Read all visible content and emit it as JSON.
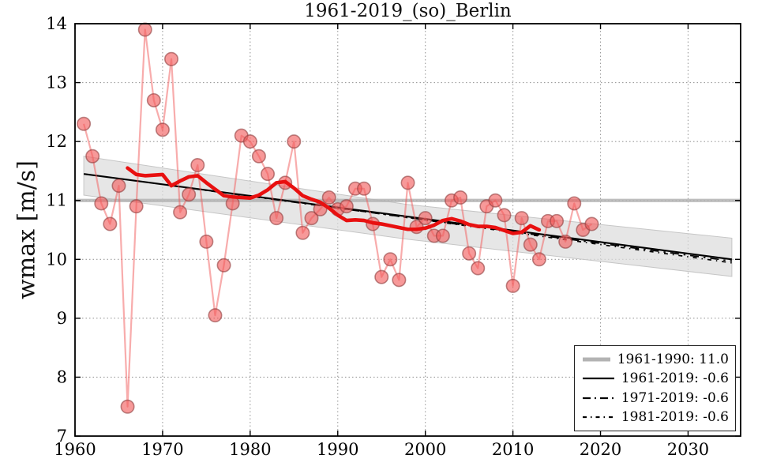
{
  "chart_data": {
    "type": "line",
    "title": "1961-2019_(so)_Berlin",
    "ylabel": "wmax [m/s]",
    "xlim": [
      1960,
      2036
    ],
    "ylim": [
      7,
      14
    ],
    "xticks": [
      1960,
      1970,
      1980,
      1990,
      2000,
      2010,
      2020,
      2030
    ],
    "yticks": [
      7,
      8,
      9,
      10,
      11,
      12,
      13,
      14
    ],
    "grid": true,
    "series": [
      {
        "name": "annual_wmax",
        "type": "scatter_line",
        "color": "#f25a5a",
        "x_start": 1961,
        "y": [
          12.3,
          11.75,
          10.95,
          10.6,
          11.25,
          7.5,
          10.9,
          13.9,
          12.7,
          12.2,
          13.4,
          10.8,
          11.1,
          11.6,
          10.3,
          9.05,
          9.9,
          10.95,
          12.1,
          12.0,
          11.75,
          11.45,
          10.7,
          11.3,
          12.0,
          10.45,
          10.7,
          10.85,
          11.05,
          10.85,
          10.9,
          11.2,
          11.2,
          10.6,
          9.7,
          10.0,
          9.65,
          11.3,
          10.55,
          10.7,
          10.4,
          10.4,
          11.0,
          11.05,
          10.1,
          9.85,
          10.9,
          11.0,
          10.75,
          9.55,
          10.7,
          10.25,
          10.0,
          10.65,
          10.65,
          10.3,
          10.95,
          10.5,
          10.6
        ]
      },
      {
        "name": "smoothed_wmax",
        "type": "line",
        "color": "#e81010",
        "x_start": 1966,
        "y": [
          11.55,
          11.44,
          11.42,
          11.43,
          11.44,
          11.25,
          11.33,
          11.4,
          11.42,
          11.3,
          11.19,
          11.08,
          11.06,
          11.05,
          11.04,
          11.09,
          11.18,
          11.3,
          11.32,
          11.21,
          11.08,
          11.02,
          10.97,
          10.87,
          10.75,
          10.66,
          10.67,
          10.66,
          10.62,
          10.6,
          10.57,
          10.54,
          10.51,
          10.51,
          10.53,
          10.58,
          10.66,
          10.69,
          10.65,
          10.59,
          10.56,
          10.56,
          10.54,
          10.49,
          10.44,
          10.46,
          10.57,
          10.5
        ]
      },
      {
        "name": "reference_1961_1990",
        "type": "hline",
        "color": "#b3b3b3",
        "value": 11.0,
        "x": [
          1960,
          2036
        ]
      },
      {
        "name": "trend_1961_2019",
        "type": "trend",
        "style": "solid",
        "color": "#000000",
        "x": [
          1961,
          2035
        ],
        "y": [
          11.45,
          10.0
        ]
      },
      {
        "name": "trend_1971_2019",
        "type": "trend",
        "style": "dashdot",
        "color": "#000000",
        "x": [
          1971,
          2035
        ],
        "y": [
          11.25,
          9.97
        ]
      },
      {
        "name": "trend_1981_2019",
        "type": "trend",
        "style": "dashdot2",
        "color": "#000000",
        "x": [
          1981,
          2035
        ],
        "y": [
          11.06,
          9.94
        ]
      },
      {
        "name": "confidence_band",
        "type": "band",
        "color": "#dcdcdc",
        "x": [
          1961,
          1998,
          2035
        ],
        "top": [
          11.75,
          10.93,
          10.36
        ],
        "bottom": [
          11.09,
          10.34,
          9.71
        ]
      }
    ],
    "legend": {
      "position": "lower right",
      "entries": [
        {
          "label": "1961-1990: 11.0",
          "style": "thick",
          "color": "#b3b3b3"
        },
        {
          "label": "1961-2019: -0.6",
          "style": "solid",
          "color": "#000000"
        },
        {
          "label": "1971-2019: -0.6",
          "style": "dashdot",
          "color": "#000000"
        },
        {
          "label": "1981-2019: -0.6",
          "style": "dashdot2",
          "color": "#000000"
        }
      ]
    }
  }
}
